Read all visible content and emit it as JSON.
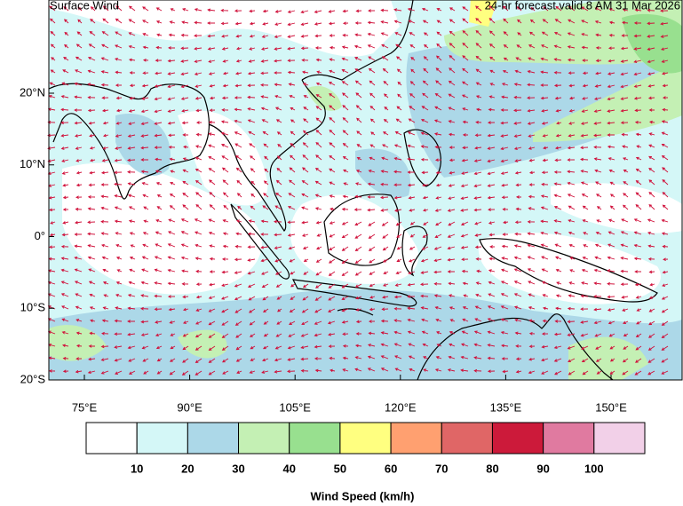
{
  "map": {
    "title": "Surface Wind",
    "subtitle": "24-hr forecast valid 8 AM 31 Mar 2026",
    "lat_labels": [
      "20°N",
      "10°N",
      "0°",
      "10°S",
      "20°S"
    ],
    "lon_labels": [
      "75°E",
      "90°E",
      "105°E",
      "120°E",
      "135°E",
      "150°E"
    ],
    "legend": {
      "title": "Wind Speed (km/h)",
      "colors": [
        "#ffffff",
        "#d4f7f7",
        "#acd8e8",
        "#c4f0b4",
        "#98e08f",
        "#ffff80",
        "#ffa070",
        "#e06666",
        "#cc1a3a",
        "#e07aa0",
        "#f2d0e8"
      ],
      "ticks": [
        10,
        20,
        30,
        40,
        50,
        60,
        70,
        80,
        90,
        100
      ]
    }
  }
}
